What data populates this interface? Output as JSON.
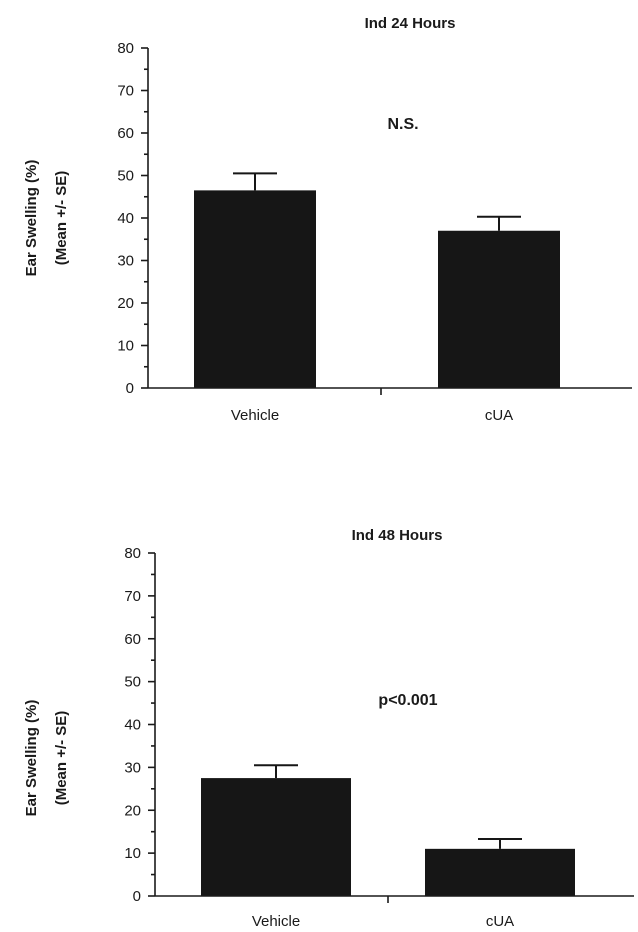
{
  "chart_data": [
    {
      "type": "bar",
      "title": "Ind  24  Hours",
      "ylabel_line1": "Ear  Swelling  (%)",
      "ylabel_line2": "(Mean  +/-  SE)",
      "categories": [
        "Vehicle",
        "cUA"
      ],
      "values": [
        46.5,
        37
      ],
      "errors": [
        4,
        3.3
      ],
      "ylim": [
        0,
        80
      ],
      "yticks": [
        0,
        10,
        20,
        30,
        40,
        50,
        60,
        70,
        80
      ],
      "annotation": "N.S.",
      "colors": {
        "bar": "#161616"
      }
    },
    {
      "type": "bar",
      "title": "Ind  48  Hours",
      "ylabel_line1": "Ear  Swelling  (%)",
      "ylabel_line2": "(Mean  +/-  SE)",
      "categories": [
        "Vehicle",
        "cUA"
      ],
      "values": [
        27.5,
        11
      ],
      "errors": [
        3,
        2.3
      ],
      "ylim": [
        0,
        80
      ],
      "yticks": [
        0,
        10,
        20,
        30,
        40,
        50,
        60,
        70,
        80
      ],
      "annotation": "p<0.001",
      "colors": {
        "bar": "#161616"
      }
    }
  ]
}
